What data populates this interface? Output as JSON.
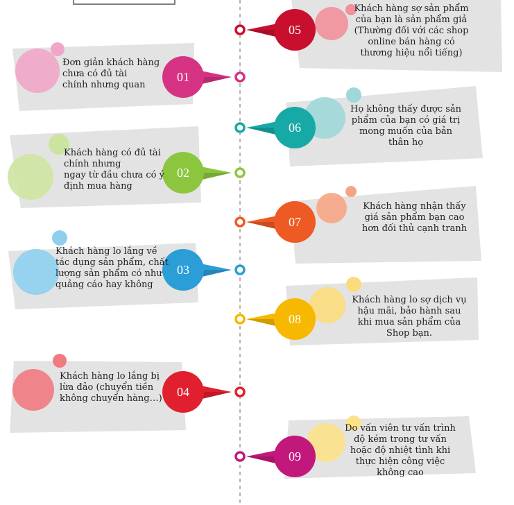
{
  "colors": {
    "box": "#e3e3e3",
    "divider": "#9a9a9a"
  },
  "items": [
    {
      "number": "01",
      "text": "Đơn giản khách hàng\nchưa có đủ tài\nchính nhưng quan",
      "color": "#d63384",
      "light": "#f0a6c8"
    },
    {
      "number": "02",
      "text": "Khách hàng có đủ tài\nchính nhưng\nngay từ đầu chưa có ý\nđịnh mua hàng",
      "color": "#8cc63f",
      "light": "#cde4a0"
    },
    {
      "number": "03",
      "text": "Khách hàng lo lắng về\ntác dụng sản phẩm, chất\nlượng sản phẩm có như\nquảng cáo hay không",
      "color": "#2b9ed8",
      "light": "#8ecfee"
    },
    {
      "number": "04",
      "text": "Khách hàng lo lắng bị\nlừa đảo (chuyển tiền\nkhông chuyển hàng…)",
      "color": "#e0202e",
      "light": "#f07a80"
    },
    {
      "number": "05",
      "text": "Khách hàng sợ sản phẩm\ncủa bạn là sản phẩm giả\n(Thường đối với các shop\nonline bán hàng có\nthương hiệu nổi tiếng)",
      "color": "#c8102e",
      "light": "#f2909a"
    },
    {
      "number": "06",
      "text": "Họ không thấy được sản\nphẩm của bạn có giá trị\nmong muốn của bản\nthân họ",
      "color": "#17a9a6",
      "light": "#9ed8d8"
    },
    {
      "number": "07",
      "text": "Khách hàng nhận thấy\ngiá sản phẩm bạn cao\nhơn đối thủ cạnh tranh",
      "color": "#ee5a24",
      "light": "#f6a584"
    },
    {
      "number": "08",
      "text": "Khách hàng lo sợ dịch vụ\nhậu mãi, bảo hành sau\nkhi mua sản phẩm của\nShop bạn.",
      "color": "#f6b800",
      "light": "#fbdc7c"
    },
    {
      "number": "09",
      "text": "Do vấn viên tư vấn trình\nđộ kém trong tư vấn\nhoặc độ nhiệt tình khi\nthực hiện công việc\nkhông cao",
      "color": "#c2187c",
      "light": "#fbe28a"
    }
  ]
}
